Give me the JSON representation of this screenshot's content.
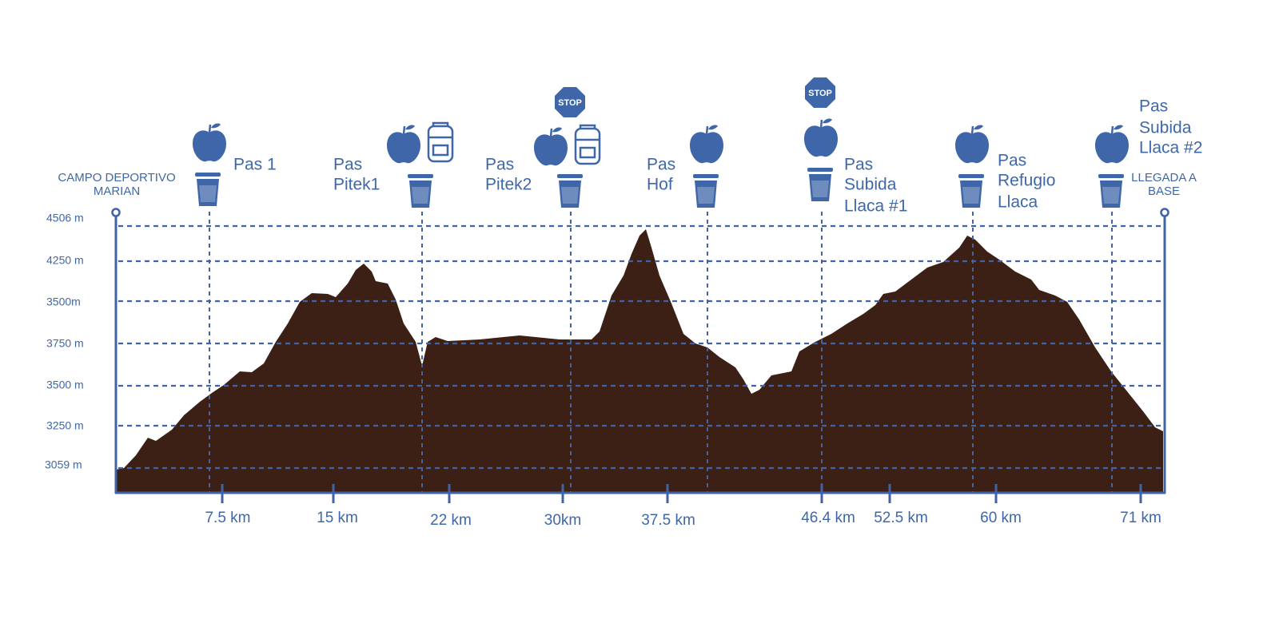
{
  "start_label": [
    "CAMPO DEPORTIVO",
    "MARIAN"
  ],
  "end_label": [
    "LLEGADA A",
    "BASE"
  ],
  "elevation_labels": [
    "4506 m",
    "4250 m",
    "3500m",
    "3750 m",
    "3500 m",
    "3250 m",
    "3059 m"
  ],
  "distance_labels": [
    "7.5 km",
    "15 km",
    "22 km",
    "30km",
    "37.5 km",
    "46.4 km",
    "52.5 km",
    "60 km",
    "71 km"
  ],
  "stations": [
    {
      "label": [
        "Pas 1"
      ]
    },
    {
      "label": [
        "Pas",
        "Pitek1"
      ]
    },
    {
      "label": [
        "Pas",
        "Pitek2"
      ],
      "stop_sign": "STOP"
    },
    {
      "label": [
        "Pas",
        "Hof"
      ]
    },
    {
      "label": [
        "Pas",
        "Subida",
        "Llaca #1"
      ],
      "stop_sign": "STOP"
    },
    {
      "label": [
        "Pas",
        "Refugio",
        "Llaca"
      ]
    },
    {
      "label": [
        "Pas",
        "Subida",
        "Llaca #2"
      ]
    }
  ]
}
